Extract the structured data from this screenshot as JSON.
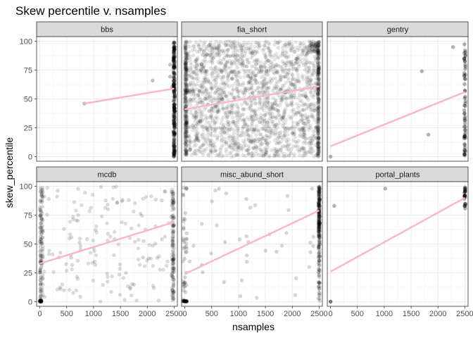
{
  "chart_data": {
    "type": "scatter",
    "title": "Skew percentile v. nsamples",
    "xlabel": "nsamples",
    "ylabel": "skew_percentile",
    "xlim": [
      -60,
      2560
    ],
    "ylim": [
      -4,
      104
    ],
    "x_ticks": [
      0,
      500,
      1000,
      1500,
      2000,
      2500
    ],
    "y_ticks": [
      0,
      25,
      50,
      75,
      100
    ],
    "grid": true,
    "layout": {
      "rows": 2,
      "cols": 3
    },
    "point_color": "#000000",
    "trend_color": "#f7b6c8",
    "strip_fill": "#d9d9d9",
    "panels": [
      {
        "name": "bbs",
        "trend": [
          [
            830,
            46
          ],
          [
            2500,
            59
          ]
        ],
        "point_alpha": 0.25,
        "clusters": [
          {
            "x": [
              2500,
              2500
            ],
            "y": [
              0,
              100
            ],
            "n": 220,
            "jitter": 2
          },
          {
            "x": [
              2380,
              2500
            ],
            "y": [
              60,
              80
            ],
            "n": 4
          },
          {
            "x": [
              830,
              830
            ],
            "y": [
              46,
              46
            ],
            "n": 1
          },
          {
            "x": [
              2100,
              2100
            ],
            "y": [
              66,
              66
            ],
            "n": 1
          }
        ]
      },
      {
        "name": "fia_short",
        "trend": [
          [
            0,
            41
          ],
          [
            2500,
            61
          ]
        ],
        "point_alpha": 0.1,
        "clusters": [
          {
            "x": [
              0,
              2500
            ],
            "y": [
              0,
              100
            ],
            "n": 2000
          },
          {
            "x": [
              0,
              40
            ],
            "y": [
              0,
              100
            ],
            "n": 260
          },
          {
            "x": [
              2470,
              2500
            ],
            "y": [
              0,
              100
            ],
            "n": 260
          },
          {
            "x": [
              2300,
              2500
            ],
            "y": [
              90,
              100
            ],
            "n": 60
          }
        ]
      },
      {
        "name": "gentry",
        "trend": [
          [
            0,
            9
          ],
          [
            2500,
            56
          ]
        ],
        "point_alpha": 0.3,
        "clusters": [
          {
            "x": [
              2500,
              2500
            ],
            "y": [
              0,
              100
            ],
            "n": 60,
            "jitter": 2
          },
          {
            "x": [
              0,
              0
            ],
            "y": [
              0,
              0
            ],
            "n": 1
          },
          {
            "x": [
              1700,
              1700
            ],
            "y": [
              74,
              74
            ],
            "n": 1
          },
          {
            "x": [
              1820,
              1820
            ],
            "y": [
              19,
              19
            ],
            "n": 1
          },
          {
            "x": [
              2280,
              2280
            ],
            "y": [
              95,
              95
            ],
            "n": 1
          }
        ]
      },
      {
        "name": "mcdb",
        "trend": [
          [
            0,
            33
          ],
          [
            2500,
            69
          ]
        ],
        "point_alpha": 0.14,
        "clusters": [
          {
            "x": [
              0,
              2500
            ],
            "y": [
              0,
              100
            ],
            "n": 170
          },
          {
            "x": [
              0,
              60
            ],
            "y": [
              0,
              100
            ],
            "n": 120
          },
          {
            "x": [
              2460,
              2500
            ],
            "y": [
              0,
              100
            ],
            "n": 120
          },
          {
            "x": [
              0,
              30
            ],
            "y": [
              0,
              1
            ],
            "n": 40
          }
        ]
      },
      {
        "name": "misc_abund_short",
        "trend": [
          [
            0,
            24
          ],
          [
            2500,
            79
          ]
        ],
        "point_alpha": 0.16,
        "clusters": [
          {
            "x": [
              2500,
              2500
            ],
            "y": [
              55,
              100
            ],
            "n": 160,
            "jitter": 2
          },
          {
            "x": [
              2500,
              2500
            ],
            "y": [
              0,
              55
            ],
            "n": 60,
            "jitter": 2
          },
          {
            "x": [
              0,
              0
            ],
            "y": [
              0,
              100
            ],
            "n": 40,
            "jitter": 6
          },
          {
            "x": [
              0,
              0
            ],
            "y": [
              0,
              1
            ],
            "n": 30,
            "jitter": 6
          },
          {
            "x": [
              0,
              2500
            ],
            "y": [
              0,
              100
            ],
            "n": 40
          }
        ]
      },
      {
        "name": "portal_plants",
        "trend": [
          [
            0,
            26
          ],
          [
            2500,
            90
          ]
        ],
        "point_alpha": 0.3,
        "clusters": [
          {
            "x": [
              2500,
              2500
            ],
            "y": [
              80,
              100
            ],
            "n": 25,
            "jitter": 2
          },
          {
            "x": [
              0,
              0
            ],
            "y": [
              0,
              0
            ],
            "n": 2
          },
          {
            "x": [
              70,
              70
            ],
            "y": [
              83,
              83
            ],
            "n": 1
          },
          {
            "x": [
              1020,
              1020
            ],
            "y": [
              98,
              98
            ],
            "n": 1
          }
        ]
      }
    ]
  }
}
